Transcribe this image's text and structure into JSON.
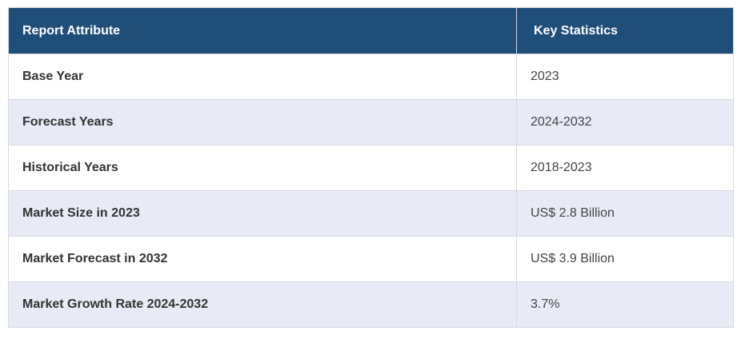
{
  "table": {
    "headers": {
      "attribute": "Report Attribute",
      "statistics": "Key Statistics"
    },
    "rows": [
      {
        "attribute": "Base Year",
        "value": "2023"
      },
      {
        "attribute": "Forecast Years",
        "value": "2024-2032"
      },
      {
        "attribute": "Historical Years",
        "value": "2018-2023"
      },
      {
        "attribute": "Market Size in 2023",
        "value": "US$ 2.8 Billion"
      },
      {
        "attribute": "Market Forecast in 2032",
        "value": "US$ 3.9 Billion"
      },
      {
        "attribute": "Market Growth Rate 2024-2032",
        "value": "3.7%"
      }
    ]
  },
  "colors": {
    "header_bg": "#1f4e79",
    "alt_row_bg": "#e8eaf6",
    "border": "#d6d9e0"
  }
}
